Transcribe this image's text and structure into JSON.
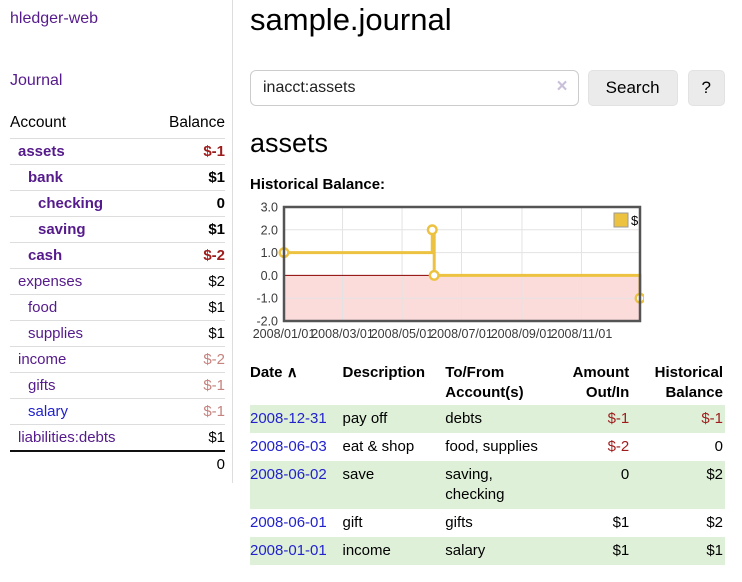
{
  "app": {
    "title": "hledger-web",
    "nav_journal": "Journal"
  },
  "sidebar": {
    "headers": {
      "account": "Account",
      "balance": "Balance"
    },
    "accounts": [
      {
        "name": "assets",
        "depth": 0,
        "balance": "$-1",
        "bold": true,
        "balance_negative": true,
        "muted": false,
        "blue_link": false
      },
      {
        "name": "bank",
        "depth": 1,
        "balance": "$1",
        "bold": true,
        "balance_negative": false,
        "muted": false,
        "blue_link": false
      },
      {
        "name": "checking",
        "depth": 2,
        "balance": "0",
        "bold": true,
        "balance_negative": false,
        "muted": false,
        "blue_link": false
      },
      {
        "name": "saving",
        "depth": 2,
        "balance": "$1",
        "bold": true,
        "balance_negative": false,
        "muted": false,
        "blue_link": false
      },
      {
        "name": "cash",
        "depth": 1,
        "balance": "$-2",
        "bold": true,
        "balance_negative": true,
        "muted": false,
        "blue_link": false
      },
      {
        "name": "expenses",
        "depth": 0,
        "balance": "$2",
        "bold": false,
        "balance_negative": false,
        "muted": false,
        "blue_link": false
      },
      {
        "name": "food",
        "depth": 1,
        "balance": "$1",
        "bold": false,
        "balance_negative": false,
        "muted": false,
        "blue_link": false
      },
      {
        "name": "supplies",
        "depth": 1,
        "balance": "$1",
        "bold": false,
        "balance_negative": false,
        "muted": false,
        "blue_link": false
      },
      {
        "name": "income",
        "depth": 0,
        "balance": "$-2",
        "bold": false,
        "balance_negative": true,
        "muted": true,
        "blue_link": false
      },
      {
        "name": "gifts",
        "depth": 1,
        "balance": "$-1",
        "bold": false,
        "balance_negative": true,
        "muted": true,
        "blue_link": false
      },
      {
        "name": "salary",
        "depth": 1,
        "balance": "$-1",
        "bold": false,
        "balance_negative": true,
        "muted": true,
        "blue_link": true
      },
      {
        "name": "liabilities:debts",
        "depth": 0,
        "balance": "$1",
        "bold": false,
        "balance_negative": false,
        "muted": false,
        "blue_link": false
      }
    ],
    "total": "0"
  },
  "main": {
    "title": "sample.journal",
    "search": {
      "value": "inacct:assets",
      "clear_icon": "×",
      "button": "Search",
      "help": "?"
    },
    "account_title": "assets",
    "chart_label": "Historical Balance:"
  },
  "chart_data": {
    "type": "line",
    "step": true,
    "title": "Historical Balance",
    "series": [
      {
        "name": "$",
        "color": "#EDC240",
        "points": [
          [
            "2008-01-01",
            1
          ],
          [
            "2008-06-01",
            2
          ],
          [
            "2008-06-03",
            0
          ],
          [
            "2008-12-31",
            -1
          ]
        ]
      }
    ],
    "x_start": "2008/01/01",
    "x_end": "2008/12/31",
    "ylim": [
      -2,
      3
    ],
    "yticks": [
      "3.0",
      "2.0",
      "1.0",
      "0.0",
      "-1.0",
      "-2.0"
    ],
    "xticks": [
      "2008/01/01",
      "2008/03/01",
      "2008/05/01",
      "2008/07/01",
      "2008/09/01",
      "2008/11/01"
    ],
    "legend": "$",
    "legend_position": "top-right",
    "grid": true,
    "negative_region_color": "#fbdcdb",
    "zero_line_color": "#8b0000",
    "grid_color": "#e3e3e3",
    "border_color": "#545454"
  },
  "register": {
    "headers": [
      "Date",
      "Description",
      "To/From Account(s)",
      "Amount Out/In",
      "Historical Balance"
    ],
    "sort_icon": "∧",
    "rows": [
      {
        "date": "2008-12-31",
        "description": "pay off",
        "accounts": "debts",
        "amount": "$-1",
        "balance": "$-1",
        "amount_negative": true,
        "balance_negative": true
      },
      {
        "date": "2008-06-03",
        "description": "eat & shop",
        "accounts": "food, supplies",
        "amount": "$-2",
        "balance": "0",
        "amount_negative": true,
        "balance_negative": false
      },
      {
        "date": "2008-06-02",
        "description": "save",
        "accounts": "saving, checking",
        "amount": "0",
        "balance": "$2",
        "amount_negative": false,
        "balance_negative": false
      },
      {
        "date": "2008-06-01",
        "description": "gift",
        "accounts": "gifts",
        "amount": "$1",
        "balance": "$2",
        "amount_negative": false,
        "balance_negative": false
      },
      {
        "date": "2008-01-01",
        "description": "income",
        "accounts": "salary",
        "amount": "$1",
        "balance": "$1",
        "amount_negative": false,
        "balance_negative": false
      }
    ]
  }
}
